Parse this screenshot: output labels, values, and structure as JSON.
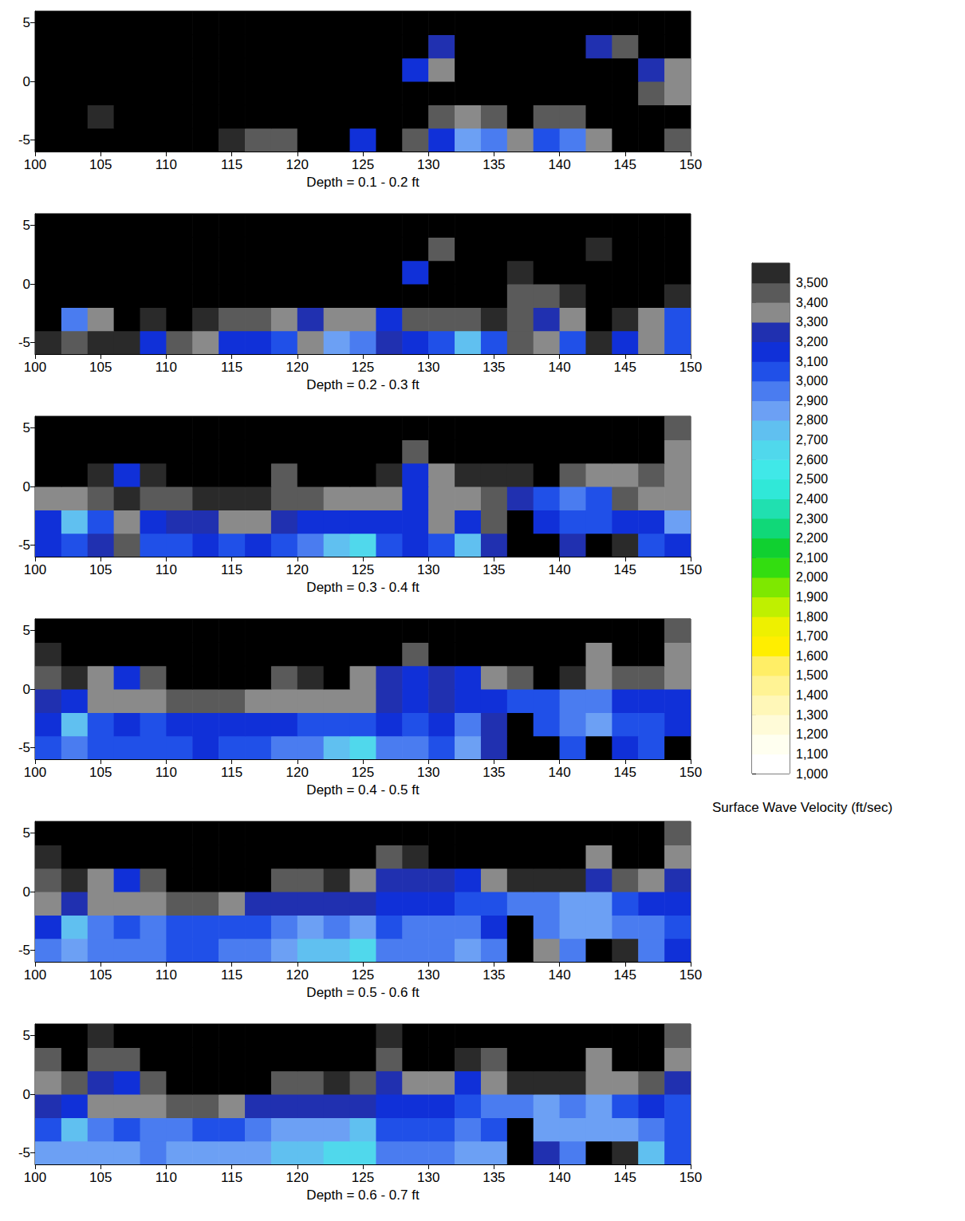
{
  "chart_data": {
    "type": "heatmap",
    "x": [
      101,
      103,
      105,
      107,
      109,
      111,
      113,
      115,
      117,
      119,
      121,
      123,
      125,
      127,
      129,
      131,
      133,
      135,
      137,
      139,
      141,
      143,
      145,
      147,
      149
    ],
    "y": [
      -5,
      -3,
      -1,
      1,
      3,
      5
    ],
    "xlim": [
      100,
      150
    ],
    "xticks": [
      100,
      105,
      110,
      115,
      120,
      125,
      130,
      135,
      140,
      145,
      150
    ],
    "ylim": [
      -6,
      6
    ],
    "yticks": [
      -5,
      0,
      5
    ],
    "panels": [
      {
        "title": "Depth = 0.1 - 0.2 ft",
        "cells": [
          [
            3600,
            3600,
            3600,
            3600,
            3600,
            3600,
            3600,
            3500,
            3400,
            3400,
            3600,
            3600,
            3100,
            3600,
            3400,
            3100,
            2800,
            2900,
            3300,
            3000,
            2900,
            3300,
            3600,
            3600,
            3400
          ],
          [
            3600,
            3600,
            3500,
            3600,
            3600,
            3600,
            3600,
            3600,
            3600,
            3600,
            3600,
            3600,
            3600,
            3600,
            3600,
            3400,
            3300,
            3400,
            3600,
            3400,
            3400,
            3600,
            3600,
            3600,
            3600
          ],
          [
            3600,
            3600,
            3600,
            3600,
            3600,
            3600,
            3600,
            3600,
            3600,
            3600,
            3600,
            3600,
            3600,
            3600,
            3600,
            3600,
            3600,
            3600,
            3600,
            3600,
            3600,
            3600,
            3600,
            3400,
            3300
          ],
          [
            3600,
            3600,
            3600,
            3600,
            3600,
            3600,
            3600,
            3600,
            3600,
            3600,
            3600,
            3600,
            3600,
            3600,
            3100,
            3300,
            3600,
            3600,
            3600,
            3600,
            3600,
            3600,
            3600,
            3200,
            3300
          ],
          [
            3600,
            3600,
            3600,
            3600,
            3600,
            3600,
            3600,
            3600,
            3600,
            3600,
            3600,
            3600,
            3600,
            3600,
            3600,
            3200,
            3600,
            3600,
            3600,
            3600,
            3600,
            3200,
            3400,
            3600,
            3600
          ],
          [
            3600,
            3600,
            3600,
            3600,
            3600,
            3600,
            3600,
            3600,
            3600,
            3600,
            3600,
            3600,
            3600,
            3600,
            3600,
            3600,
            3600,
            3600,
            3600,
            3600,
            3600,
            3600,
            3600,
            3600,
            3600
          ]
        ]
      },
      {
        "title": "Depth = 0.2 - 0.3 ft",
        "cells": [
          [
            3500,
            3400,
            3500,
            3500,
            3100,
            3400,
            3300,
            3100,
            3100,
            3000,
            3300,
            2800,
            2900,
            3200,
            3100,
            3000,
            2700,
            3000,
            3400,
            3300,
            3000,
            3500,
            3100,
            3300,
            3000
          ],
          [
            3600,
            2900,
            3300,
            3600,
            3500,
            3600,
            3500,
            3400,
            3400,
            3300,
            3200,
            3300,
            3300,
            3100,
            3400,
            3400,
            3400,
            3500,
            3400,
            3200,
            3300,
            3600,
            3500,
            3300,
            3000
          ],
          [
            3600,
            3600,
            3600,
            3600,
            3600,
            3600,
            3600,
            3600,
            3600,
            3600,
            3600,
            3600,
            3600,
            3600,
            3600,
            3600,
            3600,
            3600,
            3400,
            3400,
            3500,
            3600,
            3600,
            3600,
            3500
          ],
          [
            3600,
            3600,
            3600,
            3600,
            3600,
            3600,
            3600,
            3600,
            3600,
            3600,
            3600,
            3600,
            3600,
            3600,
            3100,
            3600,
            3600,
            3600,
            3500,
            3600,
            3600,
            3600,
            3600,
            3600,
            3600
          ],
          [
            3600,
            3600,
            3600,
            3600,
            3600,
            3600,
            3600,
            3600,
            3600,
            3600,
            3600,
            3600,
            3600,
            3600,
            3600,
            3400,
            3600,
            3600,
            3600,
            3600,
            3600,
            3500,
            3600,
            3600,
            3600
          ],
          [
            3600,
            3600,
            3600,
            3600,
            3600,
            3600,
            3600,
            3600,
            3600,
            3600,
            3600,
            3600,
            3600,
            3600,
            3600,
            3600,
            3600,
            3600,
            3600,
            3600,
            3600,
            3600,
            3600,
            3600,
            3600
          ]
        ]
      },
      {
        "title": "Depth = 0.3 - 0.4 ft",
        "cells": [
          [
            3100,
            3000,
            3200,
            3400,
            3000,
            3000,
            3100,
            3000,
            3100,
            3000,
            2900,
            2700,
            2600,
            3000,
            3100,
            3000,
            2700,
            3200,
            3600,
            3600,
            3200,
            3600,
            3500,
            3000,
            3100
          ],
          [
            3100,
            2700,
            3000,
            3300,
            3100,
            3200,
            3200,
            3300,
            3300,
            3200,
            3100,
            3100,
            3100,
            3100,
            3100,
            3300,
            3100,
            3400,
            3600,
            3100,
            3000,
            3000,
            3100,
            3100,
            2800
          ],
          [
            3300,
            3300,
            3400,
            3500,
            3400,
            3400,
            3500,
            3500,
            3500,
            3400,
            3400,
            3300,
            3300,
            3300,
            3100,
            3300,
            3300,
            3400,
            3200,
            3000,
            2900,
            3000,
            3400,
            3300,
            3300
          ],
          [
            3600,
            3600,
            3500,
            3100,
            3500,
            3600,
            3600,
            3600,
            3600,
            3400,
            3600,
            3600,
            3600,
            3500,
            3100,
            3300,
            3500,
            3500,
            3500,
            3600,
            3400,
            3300,
            3300,
            3400,
            3300
          ],
          [
            3600,
            3600,
            3600,
            3600,
            3600,
            3600,
            3600,
            3600,
            3600,
            3600,
            3600,
            3600,
            3600,
            3600,
            3400,
            3600,
            3600,
            3600,
            3600,
            3600,
            3600,
            3600,
            3600,
            3600,
            3300
          ],
          [
            3600,
            3600,
            3600,
            3600,
            3600,
            3600,
            3600,
            3600,
            3600,
            3600,
            3600,
            3600,
            3600,
            3600,
            3600,
            3600,
            3600,
            3600,
            3600,
            3600,
            3600,
            3600,
            3600,
            3600,
            3400
          ]
        ]
      },
      {
        "title": "Depth = 0.4 - 0.5 ft",
        "cells": [
          [
            3000,
            2900,
            3000,
            3000,
            3000,
            3000,
            3100,
            3000,
            3000,
            2900,
            2900,
            2700,
            2600,
            2900,
            2900,
            3000,
            2800,
            3200,
            3600,
            3600,
            3000,
            3600,
            3100,
            3000,
            3600
          ],
          [
            3100,
            2700,
            3000,
            3100,
            3000,
            3100,
            3100,
            3100,
            3100,
            3100,
            3000,
            3000,
            3000,
            3100,
            3000,
            3100,
            2900,
            3200,
            3600,
            3000,
            2900,
            2800,
            3000,
            3000,
            3100
          ],
          [
            3200,
            3100,
            3300,
            3300,
            3300,
            3400,
            3400,
            3400,
            3300,
            3300,
            3300,
            3300,
            3300,
            3200,
            3100,
            3200,
            3100,
            3100,
            3000,
            3000,
            2900,
            2900,
            3100,
            3100,
            3100
          ],
          [
            3400,
            3500,
            3300,
            3100,
            3400,
            3600,
            3600,
            3600,
            3600,
            3400,
            3500,
            3600,
            3300,
            3200,
            3100,
            3200,
            3100,
            3300,
            3400,
            3600,
            3500,
            3300,
            3400,
            3400,
            3300
          ],
          [
            3500,
            3600,
            3600,
            3600,
            3600,
            3600,
            3600,
            3600,
            3600,
            3600,
            3600,
            3600,
            3600,
            3600,
            3400,
            3600,
            3600,
            3600,
            3600,
            3600,
            3600,
            3300,
            3600,
            3600,
            3300
          ],
          [
            3600,
            3600,
            3600,
            3600,
            3600,
            3600,
            3600,
            3600,
            3600,
            3600,
            3600,
            3600,
            3600,
            3600,
            3600,
            3600,
            3600,
            3600,
            3600,
            3600,
            3600,
            3600,
            3600,
            3600,
            3400
          ]
        ]
      },
      {
        "title": "Depth = 0.5 - 0.6 ft",
        "cells": [
          [
            2900,
            2800,
            2900,
            2900,
            2900,
            3000,
            3000,
            2900,
            2900,
            2800,
            2700,
            2700,
            2600,
            2900,
            2900,
            2900,
            2800,
            2900,
            3600,
            3300,
            2900,
            3600,
            3500,
            2900,
            3100
          ],
          [
            3100,
            2700,
            2900,
            3000,
            2900,
            3000,
            3000,
            3000,
            3000,
            2900,
            2800,
            2900,
            2800,
            3000,
            2900,
            2900,
            2900,
            3100,
            3600,
            2900,
            2800,
            2800,
            2900,
            2900,
            3000
          ],
          [
            3300,
            3200,
            3300,
            3300,
            3300,
            3400,
            3400,
            3300,
            3200,
            3200,
            3200,
            3200,
            3200,
            3100,
            3100,
            3100,
            3000,
            3000,
            2900,
            2900,
            2800,
            2800,
            3000,
            3100,
            3100
          ],
          [
            3400,
            3500,
            3300,
            3100,
            3400,
            3600,
            3600,
            3600,
            3600,
            3400,
            3400,
            3500,
            3300,
            3200,
            3200,
            3200,
            3100,
            3300,
            3500,
            3500,
            3500,
            3200,
            3400,
            3300,
            3200
          ],
          [
            3500,
            3600,
            3600,
            3600,
            3600,
            3600,
            3600,
            3600,
            3600,
            3600,
            3600,
            3600,
            3600,
            3400,
            3500,
            3600,
            3600,
            3600,
            3600,
            3600,
            3600,
            3300,
            3600,
            3600,
            3300
          ],
          [
            3600,
            3600,
            3600,
            3600,
            3600,
            3600,
            3600,
            3600,
            3600,
            3600,
            3600,
            3600,
            3600,
            3600,
            3600,
            3600,
            3600,
            3600,
            3600,
            3600,
            3600,
            3600,
            3600,
            3600,
            3400
          ]
        ]
      },
      {
        "title": "Depth = 0.6 - 0.7 ft",
        "cells": [
          [
            2800,
            2800,
            2800,
            2800,
            2900,
            2800,
            2800,
            2800,
            2800,
            2700,
            2700,
            2600,
            2600,
            2900,
            2900,
            2900,
            2800,
            2800,
            3600,
            3200,
            2900,
            3600,
            3500,
            2700,
            3000
          ],
          [
            3000,
            2700,
            2900,
            3000,
            2900,
            2900,
            3000,
            3000,
            2900,
            2800,
            2800,
            2800,
            2700,
            3000,
            3000,
            3000,
            2900,
            3000,
            3600,
            2800,
            2800,
            2800,
            2800,
            2900,
            3000
          ],
          [
            3200,
            3100,
            3300,
            3300,
            3300,
            3400,
            3400,
            3300,
            3200,
            3200,
            3200,
            3200,
            3200,
            3100,
            3100,
            3100,
            3000,
            2900,
            2900,
            2800,
            2900,
            2800,
            3000,
            3100,
            3000
          ],
          [
            3300,
            3400,
            3200,
            3100,
            3400,
            3600,
            3600,
            3600,
            3600,
            3400,
            3400,
            3500,
            3400,
            3200,
            3300,
            3300,
            3100,
            3300,
            3500,
            3500,
            3500,
            3300,
            3300,
            3400,
            3200
          ],
          [
            3400,
            3600,
            3400,
            3400,
            3600,
            3600,
            3600,
            3600,
            3600,
            3600,
            3600,
            3600,
            3600,
            3400,
            3600,
            3600,
            3500,
            3400,
            3600,
            3600,
            3600,
            3300,
            3600,
            3600,
            3300
          ],
          [
            3600,
            3600,
            3500,
            3600,
            3600,
            3600,
            3600,
            3600,
            3600,
            3600,
            3600,
            3600,
            3600,
            3500,
            3600,
            3600,
            3600,
            3600,
            3600,
            3600,
            3600,
            3600,
            3600,
            3600,
            3400
          ]
        ]
      }
    ],
    "colorbar": {
      "label": "Surface Wave Velocity (ft/sec)",
      "range": [
        1000,
        3600
      ],
      "ticks": [
        1000,
        1100,
        1200,
        1300,
        1400,
        1500,
        1600,
        1700,
        1800,
        1900,
        2000,
        2100,
        2200,
        2300,
        2400,
        2500,
        2600,
        2700,
        2800,
        2900,
        3000,
        3100,
        3200,
        3300,
        3400,
        3500
      ],
      "colors": [
        "#ffffff",
        "#fffff0",
        "#fffbd8",
        "#fff7b8",
        "#fff394",
        "#ffee66",
        "#ffee00",
        "#eef000",
        "#bff000",
        "#7ee800",
        "#33dd10",
        "#10d030",
        "#10d878",
        "#20e0b0",
        "#30e8d8",
        "#40e8e8",
        "#50d8ec",
        "#60c0f0",
        "#6ca0f4",
        "#4a7cf0",
        "#2050e8",
        "#1030d8",
        "#2030b0",
        "#8a8a8a",
        "#5a5a5a",
        "#2a2a2a",
        "#000000"
      ]
    }
  }
}
